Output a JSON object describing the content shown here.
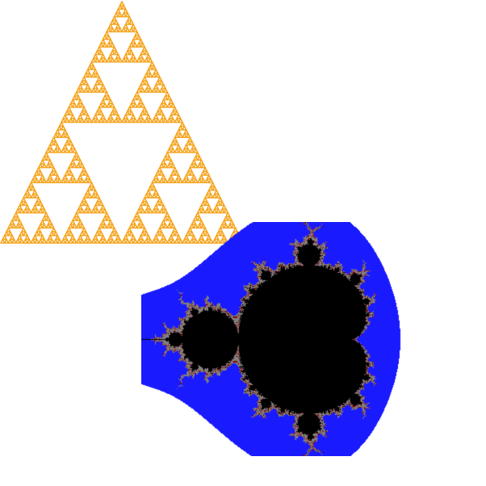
{
  "scene": {
    "background_color": "#ffffff",
    "sierpinski": {
      "name": "sierpinski-triangle",
      "stroke_color": "#f5a623",
      "depth": 6
    },
    "mandelbrot": {
      "name": "mandelbrot-set",
      "set_color": "#000000",
      "outer_band_color": "#1a1aff",
      "edge_color": "#808080",
      "edge_accent_color": "#8b0000"
    }
  }
}
